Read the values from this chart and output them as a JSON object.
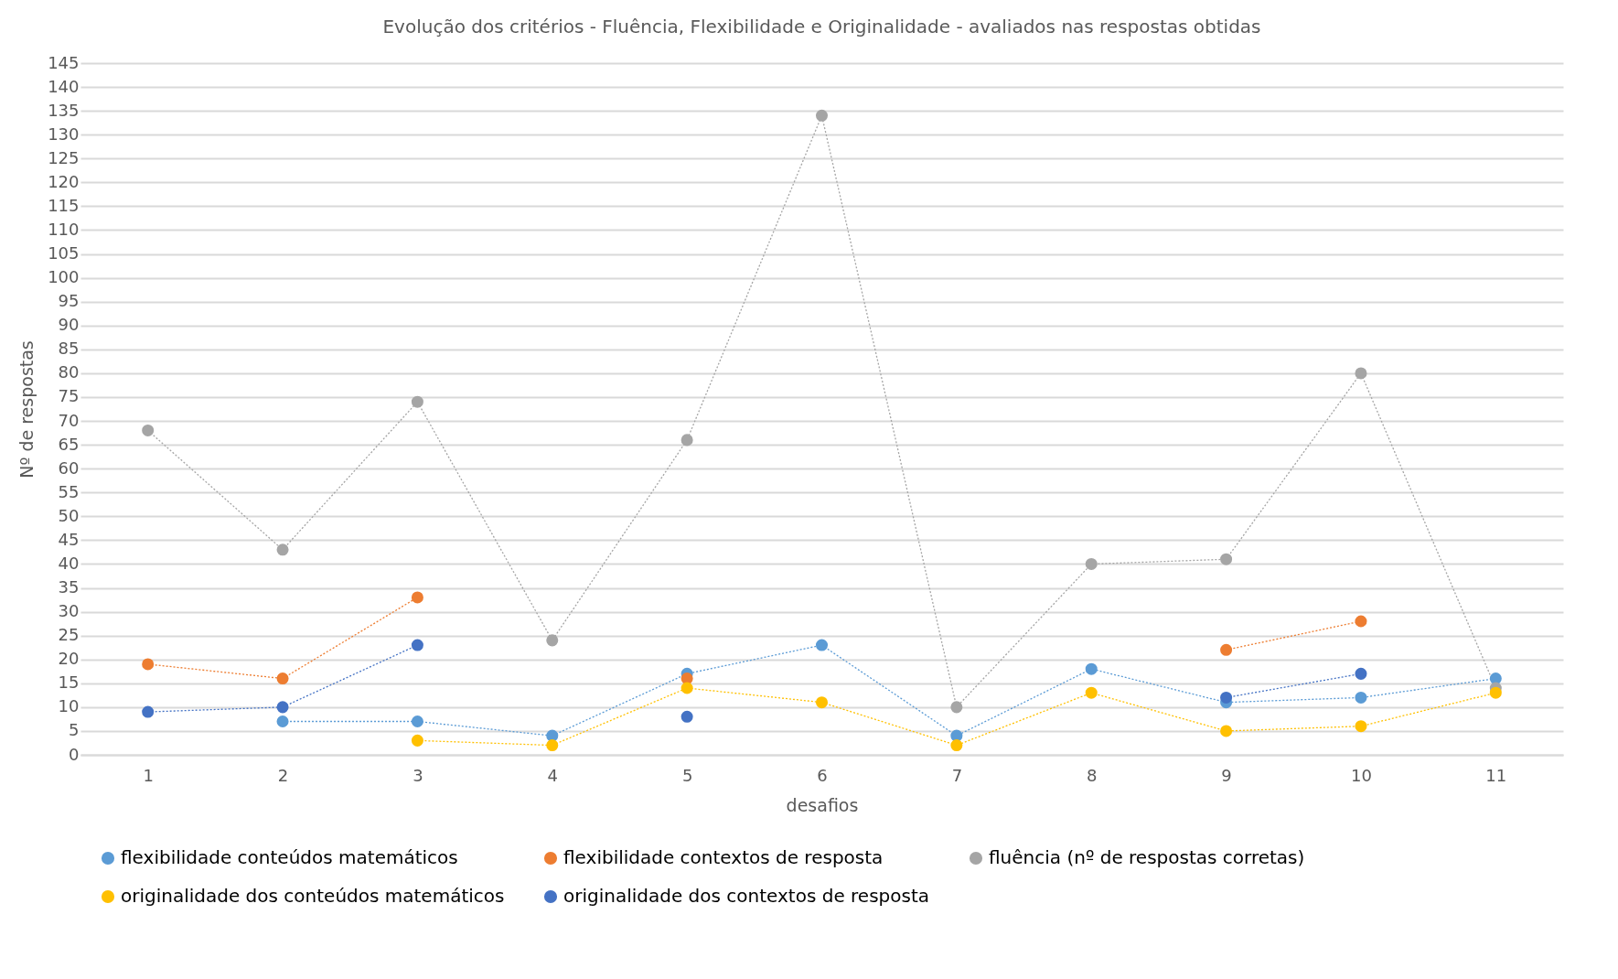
{
  "chart_data": {
    "type": "line",
    "title": "Evolução dos critérios  - Fluência, Flexibilidade e Originalidade - avaliados nas respostas obtidas",
    "xlabel": "desafios",
    "ylabel": "Nº de respostas",
    "categories": [
      "1",
      "2",
      "3",
      "4",
      "5",
      "6",
      "7",
      "8",
      "9",
      "10",
      "11"
    ],
    "series": [
      {
        "name": "flexibilidade conteúdos matemáticos",
        "color": "#5b9bd5",
        "values": [
          null,
          7,
          7,
          4,
          17,
          23,
          4,
          18,
          11,
          12,
          16
        ]
      },
      {
        "name": "flexibilidade contextos de resposta",
        "color": "#ed7d31",
        "values": [
          19,
          16,
          33,
          null,
          16,
          null,
          null,
          null,
          22,
          28,
          null
        ]
      },
      {
        "name": "fluência (nº de respostas corretas)",
        "color": "#a5a5a5",
        "values": [
          68,
          43,
          74,
          24,
          66,
          134,
          10,
          40,
          41,
          80,
          14
        ]
      },
      {
        "name": "originalidade dos conteúdos matemáticos",
        "color": "#ffc000",
        "values": [
          null,
          null,
          3,
          2,
          14,
          11,
          2,
          13,
          5,
          6,
          13
        ]
      },
      {
        "name": "originalidade dos contextos de resposta",
        "color": "#4472c4",
        "values": [
          9,
          10,
          23,
          null,
          8,
          null,
          null,
          null,
          12,
          17,
          null
        ]
      }
    ],
    "ylim": [
      0,
      145
    ],
    "yticks": [
      0,
      5,
      10,
      15,
      20,
      25,
      30,
      35,
      40,
      45,
      50,
      55,
      60,
      65,
      70,
      75,
      80,
      85,
      90,
      95,
      100,
      105,
      110,
      115,
      120,
      125,
      130,
      135,
      140,
      145
    ],
    "grid": "y",
    "legend": "bottom",
    "marker": "circle",
    "line_style": "dotted"
  }
}
